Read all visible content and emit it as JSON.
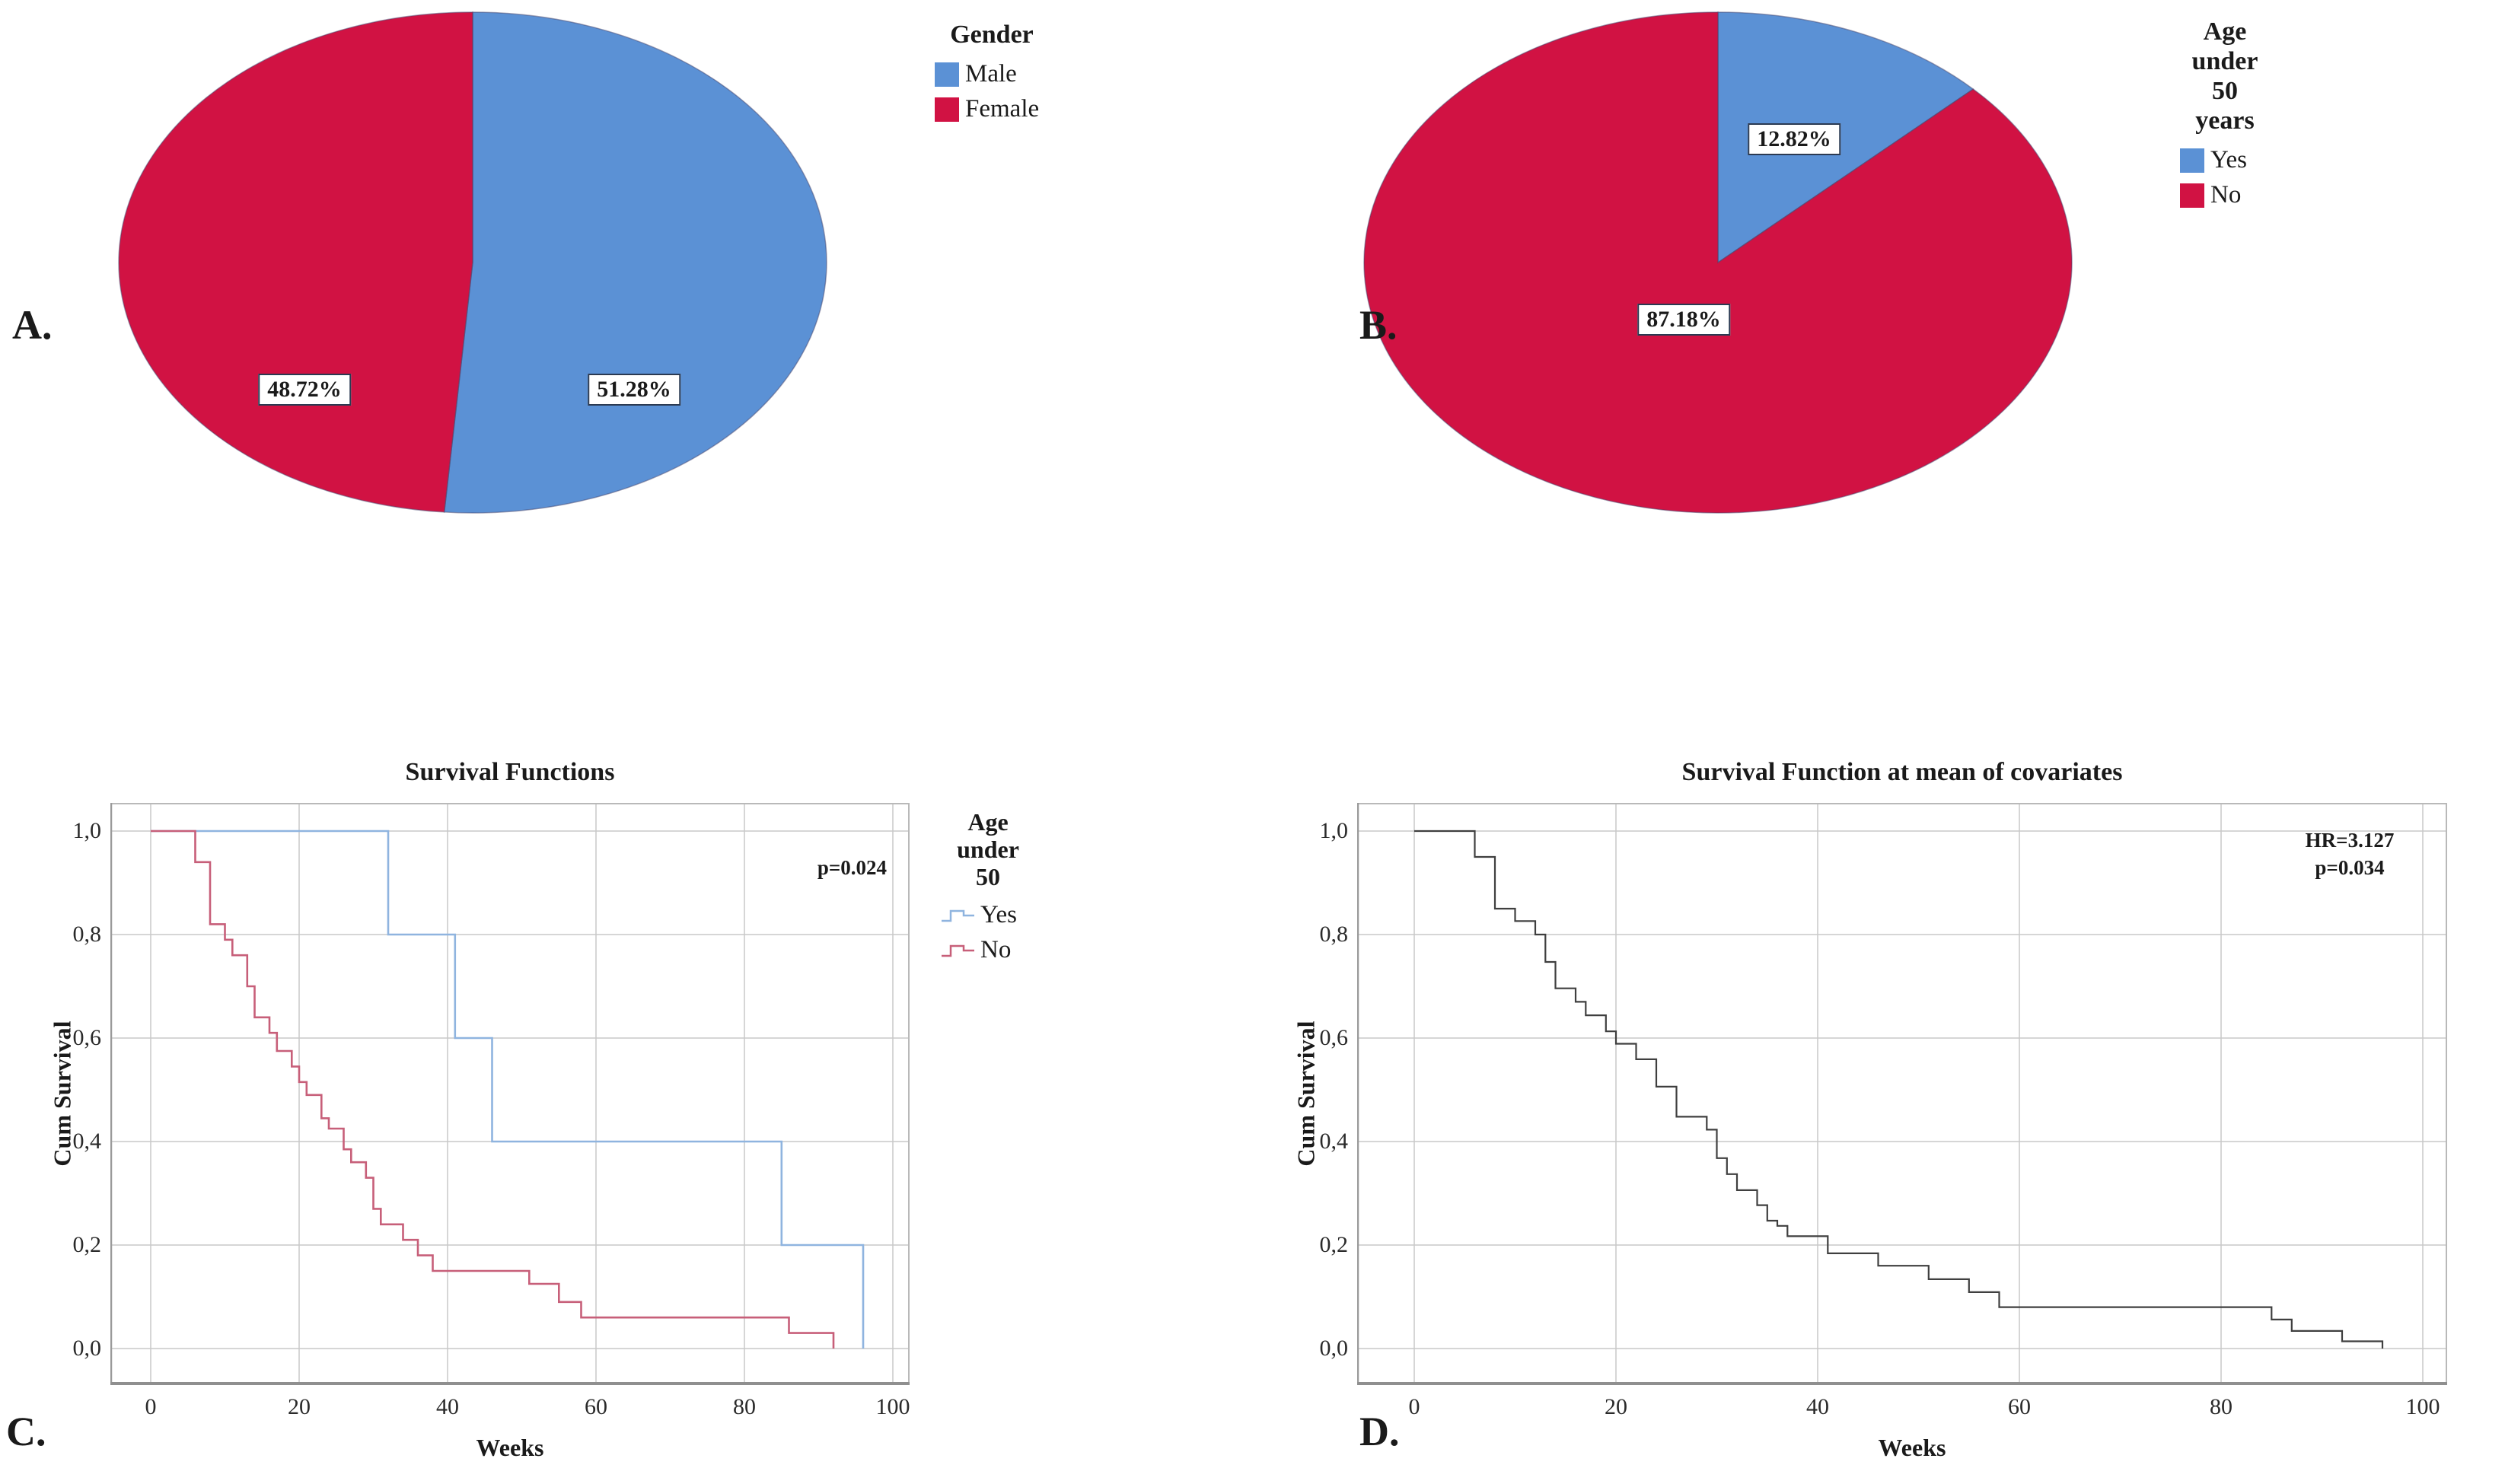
{
  "figure": {
    "panel_letters": {
      "A": "A.",
      "B": "B.",
      "C": "C.",
      "D": "D."
    }
  },
  "colors": {
    "pie_blue": "#5b91d5",
    "pie_red": "#d11243",
    "line_blue": "#8fb4df",
    "line_red": "#c75f79",
    "line_dark": "#3f3f3f",
    "grid": "#c9c9c9",
    "frame_light": "#b9b9b9",
    "frame_left": "#9a9a9a",
    "frame_bottom": "#8f8f8f",
    "label_box_border": "#2b3a52"
  },
  "chart_data": [
    {
      "id": "A",
      "type": "pie",
      "legend_title_lines": [
        "Gender"
      ],
      "start_angle": "12 o'clock",
      "direction": "clockwise",
      "slices": [
        {
          "label": "Male",
          "value": 51.28,
          "display": "51.28%",
          "color_key": "pie_blue"
        },
        {
          "label": "Female",
          "value": 48.72,
          "display": "48.72%",
          "color_key": "pie_red"
        }
      ]
    },
    {
      "id": "B",
      "type": "pie",
      "legend_title_lines": [
        "Age",
        "under",
        "50",
        "years"
      ],
      "start_angle": "12 o'clock",
      "direction": "clockwise",
      "slices": [
        {
          "label": "Yes",
          "value": 12.82,
          "display": "12.82%",
          "color_key": "pie_blue"
        },
        {
          "label": "No",
          "value": 87.18,
          "display": "87.18%",
          "color_key": "pie_red"
        }
      ]
    },
    {
      "id": "C",
      "type": "line",
      "subtype": "kaplan-meier-step",
      "title": "Survival Functions",
      "xlabel": "Weeks",
      "ylabel": "Cum Survival",
      "annotation_lines": [
        "p=0.024"
      ],
      "xlim": [
        0,
        100
      ],
      "ylim": [
        0.0,
        1.0
      ],
      "xtick_labels": [
        "0",
        "20",
        "40",
        "60",
        "80",
        "100"
      ],
      "ytick_labels": [
        "1,0",
        "0,8",
        "0,6",
        "0,4",
        "0,2",
        "0,0"
      ],
      "grid": true,
      "legend_title_lines": [
        "Age",
        "under",
        "50"
      ],
      "legend_position": "right",
      "series": [
        {
          "name": "Yes",
          "color_key": "line_blue",
          "steps": [
            [
              0,
              1
            ],
            [
              32,
              1
            ],
            [
              32,
              0.8
            ],
            [
              41,
              0.8
            ],
            [
              41,
              0.6
            ],
            [
              46,
              0.6
            ],
            [
              46,
              0.4
            ],
            [
              85,
              0.4
            ],
            [
              85,
              0.2
            ],
            [
              96,
              0.2
            ],
            [
              96,
              0
            ]
          ]
        },
        {
          "name": "No",
          "color_key": "line_red",
          "steps": [
            [
              0,
              1
            ],
            [
              6,
              1
            ],
            [
              6,
              0.94
            ],
            [
              8,
              0.94
            ],
            [
              8,
              0.82
            ],
            [
              10,
              0.82
            ],
            [
              10,
              0.79
            ],
            [
              11,
              0.79
            ],
            [
              11,
              0.76
            ],
            [
              13,
              0.76
            ],
            [
              13,
              0.7
            ],
            [
              14,
              0.7
            ],
            [
              14,
              0.64
            ],
            [
              16,
              0.64
            ],
            [
              16,
              0.61
            ],
            [
              17,
              0.61
            ],
            [
              17,
              0.575
            ],
            [
              19,
              0.575
            ],
            [
              19,
              0.545
            ],
            [
              20,
              0.545
            ],
            [
              20,
              0.515
            ],
            [
              21,
              0.515
            ],
            [
              21,
              0.49
            ],
            [
              23,
              0.49
            ],
            [
              23,
              0.445
            ],
            [
              24,
              0.445
            ],
            [
              24,
              0.425
            ],
            [
              26,
              0.425
            ],
            [
              26,
              0.385
            ],
            [
              27,
              0.385
            ],
            [
              27,
              0.36
            ],
            [
              29,
              0.36
            ],
            [
              29,
              0.33
            ],
            [
              30,
              0.33
            ],
            [
              30,
              0.27
            ],
            [
              31,
              0.27
            ],
            [
              31,
              0.24
            ],
            [
              34,
              0.24
            ],
            [
              34,
              0.21
            ],
            [
              36,
              0.21
            ],
            [
              36,
              0.18
            ],
            [
              38,
              0.18
            ],
            [
              38,
              0.15
            ],
            [
              51,
              0.15
            ],
            [
              51,
              0.125
            ],
            [
              55,
              0.125
            ],
            [
              55,
              0.09
            ],
            [
              58,
              0.09
            ],
            [
              58,
              0.06
            ],
            [
              86,
              0.06
            ],
            [
              86,
              0.03
            ],
            [
              92,
              0.03
            ],
            [
              92,
              0
            ]
          ]
        }
      ]
    },
    {
      "id": "D",
      "type": "line",
      "subtype": "cox-step",
      "title": "Survival Function at mean of covariates",
      "xlabel": "Weeks",
      "ylabel": "Cum Survival",
      "annotation_lines": [
        "HR=3.127",
        "p=0.034"
      ],
      "xlim": [
        0,
        100
      ],
      "ylim": [
        0.0,
        1.0
      ],
      "xtick_labels": [
        "0",
        "20",
        "40",
        "60",
        "80",
        "100"
      ],
      "ytick_labels": [
        "1,0",
        "0,8",
        "0,6",
        "0,4",
        "0,2",
        "0,0"
      ],
      "grid": true,
      "series": [
        {
          "name": "Survival function",
          "color_key": "line_dark",
          "steps": [
            [
              0,
              1
            ],
            [
              6,
              1
            ],
            [
              6,
              0.95
            ],
            [
              8,
              0.95
            ],
            [
              8,
              0.85
            ],
            [
              10,
              0.85
            ],
            [
              10,
              0.826
            ],
            [
              12,
              0.826
            ],
            [
              12,
              0.8
            ],
            [
              13,
              0.8
            ],
            [
              13,
              0.747
            ],
            [
              14,
              0.747
            ],
            [
              14,
              0.696
            ],
            [
              16,
              0.696
            ],
            [
              16,
              0.67
            ],
            [
              17,
              0.67
            ],
            [
              17,
              0.644
            ],
            [
              19,
              0.644
            ],
            [
              19,
              0.613
            ],
            [
              20,
              0.613
            ],
            [
              20,
              0.589
            ],
            [
              22,
              0.589
            ],
            [
              22,
              0.559
            ],
            [
              24,
              0.559
            ],
            [
              24,
              0.506
            ],
            [
              26,
              0.506
            ],
            [
              26,
              0.448
            ],
            [
              29,
              0.448
            ],
            [
              29,
              0.423
            ],
            [
              30,
              0.423
            ],
            [
              30,
              0.368
            ],
            [
              31,
              0.368
            ],
            [
              31,
              0.337
            ],
            [
              32,
              0.337
            ],
            [
              32,
              0.306
            ],
            [
              34,
              0.306
            ],
            [
              34,
              0.277
            ],
            [
              35,
              0.277
            ],
            [
              35,
              0.247
            ],
            [
              36,
              0.247
            ],
            [
              36,
              0.237
            ],
            [
              37,
              0.237
            ],
            [
              37,
              0.217
            ],
            [
              41,
              0.217
            ],
            [
              41,
              0.184
            ],
            [
              46,
              0.184
            ],
            [
              46,
              0.16
            ],
            [
              51,
              0.16
            ],
            [
              51,
              0.134
            ],
            [
              55,
              0.134
            ],
            [
              55,
              0.109
            ],
            [
              58,
              0.109
            ],
            [
              58,
              0.08
            ],
            [
              85,
              0.08
            ],
            [
              85,
              0.056
            ],
            [
              87,
              0.056
            ],
            [
              87,
              0.034
            ],
            [
              92,
              0.034
            ],
            [
              92,
              0.014
            ],
            [
              96,
              0.014
            ],
            [
              96,
              0
            ]
          ]
        }
      ]
    }
  ]
}
